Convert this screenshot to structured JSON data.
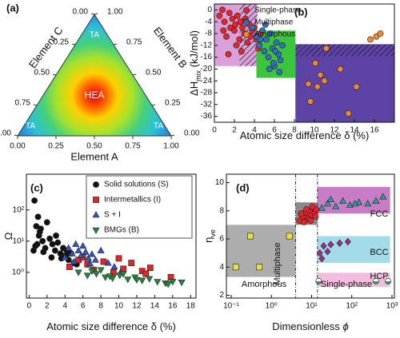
{
  "chart_data": [
    {
      "type": "ternary",
      "panel_label": "(a)",
      "axes": [
        {
          "label": "Element A",
          "ticks": [
            {
              "value": 0,
              "label": "0.00"
            },
            {
              "value": 0.25,
              "label": "0.25"
            },
            {
              "value": 0.5,
              "label": "0.50"
            },
            {
              "value": 0.75,
              "label": "0.75"
            },
            {
              "value": 1,
              "label": "1.00"
            }
          ]
        },
        {
          "label": "Element B",
          "ticks": [
            {
              "value": 0,
              "label": "0.00"
            },
            {
              "value": 0.25,
              "label": "0.25"
            },
            {
              "value": 0.5,
              "label": "0.50"
            },
            {
              "value": 0.75,
              "label": "0.75"
            },
            {
              "value": 1,
              "label": "1.00"
            }
          ]
        },
        {
          "label": "Element C",
          "ticks": [
            {
              "value": 0,
              "label": "0.00"
            },
            {
              "value": 0.25,
              "label": "0.25"
            },
            {
              "value": 0.5,
              "label": "0.50"
            },
            {
              "value": 0.75,
              "label": "0.75"
            },
            {
              "value": 1,
              "label": "1.00"
            }
          ]
        }
      ],
      "annotations": [
        "HEA",
        "TA",
        "TA",
        "TA"
      ]
    },
    {
      "type": "scatter",
      "panel_label": "(b)",
      "x_label": "Atomic size difference δ (%)",
      "y_label": "ΔH",
      "y_label_sub": "mix",
      "y_label_unit": " (kJ/mol)",
      "xlim": [
        0,
        18
      ],
      "xticks": [
        0,
        2,
        4,
        6,
        8,
        10,
        12,
        14,
        16
      ],
      "ylim": [
        -38,
        2
      ],
      "yticks": [
        0,
        -4,
        -8,
        -12,
        -16,
        -20,
        -24,
        -28,
        -32,
        -36
      ],
      "legend": "top-left",
      "regions": [
        {
          "xrange": [
            0,
            4.3
          ],
          "yrange": [
            -19,
            2
          ],
          "color": "#d9a0d9"
        },
        {
          "xrange": [
            2.5,
            4.3
          ],
          "yrange": [
            -19,
            2
          ],
          "pattern": "hatch"
        },
        {
          "xrange": [
            4.2,
            8.1
          ],
          "yrange": [
            -23,
            -7
          ],
          "color": "#3cc43c"
        },
        {
          "xrange": [
            8.1,
            18
          ],
          "yrange": [
            -38,
            -11.6
          ],
          "color": "#5e43a6"
        },
        {
          "xrange": [
            8.1,
            18
          ],
          "yrange": [
            -15.7,
            -11.6
          ],
          "pattern": "hatch"
        }
      ],
      "series": [
        {
          "name": "Single-phase",
          "color": "#e8242a",
          "marker": "circle",
          "x": [
            0.5,
            0.8,
            1.0,
            1.2,
            1.5,
            1.6,
            1.8,
            2.0,
            2.1,
            2.3,
            2.5,
            2.6,
            2.8,
            3.0,
            3.1,
            3.3,
            3.5,
            3.6,
            3.8,
            4.0,
            4.2,
            4.4,
            4.6,
            1.4,
            2.2,
            3.2,
            0.9,
            2.7
          ],
          "y": [
            -2,
            0,
            -4,
            -9,
            -1,
            -6,
            -3,
            -7,
            -5,
            -2,
            -10,
            -4,
            -6,
            -8,
            -3,
            -11,
            -5,
            -9,
            -7,
            -6,
            -10,
            -13,
            -8,
            -15,
            -12,
            -4,
            -7,
            -14
          ]
        },
        {
          "name": "Multiphase",
          "color": "#2f6fc4",
          "marker": "circle",
          "x": [
            3.8,
            4.2,
            4.5,
            4.8,
            5.0,
            5.2,
            5.4,
            5.6,
            5.8,
            6.0,
            6.2,
            6.4,
            6.6,
            6.8,
            5.1,
            5.5,
            4.6,
            6.1,
            5.9,
            6.5
          ],
          "y": [
            -6,
            -9,
            -12,
            -7,
            -14,
            -10,
            -16,
            -8,
            -13,
            -19,
            -11,
            -15,
            -17,
            -12,
            -5,
            -20,
            -10,
            -14,
            -18,
            -21
          ]
        },
        {
          "name": "Amorphous",
          "color": "#f08a2c",
          "marker": "circle",
          "x": [
            9.6,
            10.1,
            10.3,
            10.6,
            11.0,
            11.2,
            12.6,
            13.4,
            14.2,
            15.6,
            16.2,
            16.6,
            9.4
          ],
          "y": [
            -31,
            -18,
            -26,
            -22,
            -24,
            -13,
            -20,
            -35,
            -26,
            -10,
            -9,
            -8,
            -25
          ]
        }
      ]
    },
    {
      "type": "scatter",
      "panel_label": "(c)",
      "x_label": "Atomic size difference δ (%)",
      "y_label": "Ω",
      "xlim": [
        -0.3,
        18.6
      ],
      "xticks": [
        0,
        2,
        4,
        6,
        8,
        10,
        12,
        14,
        16,
        18
      ],
      "ylim": [
        0.15,
        1400
      ],
      "ylog": true,
      "yticks": [
        {
          "value": 1,
          "label": "10⁰"
        },
        {
          "value": 10,
          "label": "10¹"
        },
        {
          "value": 100,
          "label": "10²"
        }
      ],
      "legend": "top-right",
      "series": [
        {
          "name": "Solid solutions (S)",
          "color": "#111111",
          "marker": "circle",
          "x": [
            0.5,
            0.6,
            0.8,
            0.9,
            1.0,
            1.1,
            1.3,
            1.5,
            1.8,
            2.0,
            2.3,
            2.6,
            2.9,
            3.2,
            3.5,
            3.8,
            4.1,
            4.4,
            4.7,
            5.0,
            5.3,
            0.7,
            1.2,
            2.5,
            3.0,
            3.6,
            4.2,
            1.6
          ],
          "y": [
            5,
            200,
            30,
            8,
            60,
            15,
            25,
            10,
            6,
            40,
            12,
            8,
            5,
            9,
            4,
            6,
            3.5,
            2.5,
            4,
            2,
            1.8,
            7,
            20,
            3,
            15,
            2.8,
            5,
            4.5
          ]
        },
        {
          "name": "Intermetallics (I)",
          "color": "#e0262b",
          "marker": "square",
          "x": [
            4.5,
            5.5,
            6.5,
            7.2,
            8.3,
            9.4,
            10.5,
            11.4,
            12.6,
            13.5,
            15.8,
            6.0,
            10.0,
            13.0
          ],
          "y": [
            1.5,
            2.5,
            1.8,
            1.2,
            2.2,
            1.0,
            1.3,
            2.0,
            1.1,
            1.4,
            0.7,
            3,
            2.8,
            0.9
          ]
        },
        {
          "name": "S + I",
          "color": "#2d56c8",
          "marker": "triangle",
          "x": [
            4.0,
            4.4,
            4.8,
            5.2,
            5.5,
            5.8,
            6.0,
            6.3,
            6.6,
            7.0,
            7.4,
            8.0,
            8.8,
            9.5,
            10.2,
            5.0,
            6.8
          ],
          "y": [
            3,
            6,
            4,
            8,
            5,
            3.5,
            7,
            4.5,
            2.8,
            3.8,
            2.5,
            5,
            2.0,
            1.5,
            1.0,
            2.2,
            1.9
          ]
        },
        {
          "name": "BMGs (B)",
          "color": "#1e8a3a",
          "marker": "triangle-down",
          "x": [
            5.5,
            6.5,
            7.5,
            8.5,
            9.3,
            10.1,
            11.0,
            11.8,
            12.6,
            13.4,
            14.3,
            15.2,
            16.0,
            17.0,
            7.0,
            9.0,
            12.0,
            15.5,
            8.0,
            10.5
          ],
          "y": [
            1.0,
            0.8,
            0.9,
            0.7,
            0.65,
            0.8,
            0.6,
            0.7,
            0.55,
            0.62,
            0.5,
            0.45,
            0.5,
            0.48,
            1.1,
            0.75,
            0.58,
            0.42,
            1.2,
            0.9
          ]
        }
      ]
    },
    {
      "type": "scatter",
      "panel_label": "(d)",
      "x_label": "Dimensionless",
      "x_label_symbol": "ϕ",
      "y_label": "η",
      "y_label_sub": "ve",
      "xlim": [
        0.076,
        1150
      ],
      "xlog": true,
      "xticks": [
        {
          "value": 0.1,
          "label": "10⁻¹"
        },
        {
          "value": 1,
          "label": "10⁰"
        },
        {
          "value": 10,
          "label": "10¹"
        },
        {
          "value": 100,
          "label": "10²"
        },
        {
          "value": 1000,
          "label": "10³"
        }
      ],
      "ylim": [
        1.8,
        10.6
      ],
      "yticks": [
        2,
        4,
        6,
        8,
        10
      ],
      "regions": [
        {
          "xrange": [
            0.076,
            4
          ],
          "yrange": [
            3.3,
            7
          ],
          "color": "#adadad"
        },
        {
          "xrange": [
            4,
            14
          ],
          "yrange": [
            7,
            8.6
          ],
          "color": "#8a8a8a"
        },
        {
          "xrange": [
            14,
            900
          ],
          "yrange": [
            7.8,
            9.7
          ],
          "color": "#c97cc6"
        },
        {
          "xrange": [
            14,
            900
          ],
          "yrange": [
            4.3,
            6.2
          ],
          "color": "#a3dbe8"
        },
        {
          "xrange": [
            14,
            900
          ],
          "yrange": [
            2.6,
            3.6
          ],
          "color": "#f4bde0"
        }
      ],
      "dividers": [
        4,
        14
      ],
      "annotations": [
        "Amorphous",
        "Multiphase",
        "Single-phase",
        "FCC",
        "BCC",
        "HCP"
      ],
      "series": [
        {
          "color": "#e8e23a",
          "marker": "square",
          "x": [
            0.13,
            0.3,
            0.5,
            2.8
          ],
          "y": [
            4.0,
            6.2,
            4.0,
            6.2
          ]
        },
        {
          "color": "#e8242a",
          "marker": "circle",
          "x": [
            5,
            6,
            7,
            8,
            9,
            10,
            11,
            12,
            13,
            6.5,
            8.5,
            10.5,
            12.5,
            5.5,
            7.5,
            9.5
          ],
          "y": [
            7.3,
            7.6,
            7.9,
            7.5,
            8.0,
            7.7,
            8.2,
            7.8,
            8.1,
            7.2,
            7.4,
            8.3,
            7.6,
            7.8,
            8.1,
            7.3
          ]
        },
        {
          "color": "#2a9d9a",
          "marker": "triangle",
          "x": [
            18,
            25,
            40,
            60,
            90,
            150,
            250,
            400,
            600,
            30,
            120
          ],
          "y": [
            8.2,
            8.5,
            8.3,
            8.7,
            8.4,
            8.6,
            8.5,
            8.7,
            9.0,
            8.8,
            8.5
          ]
        },
        {
          "color": "#9b2f8e",
          "marker": "diamond",
          "x": [
            16,
            20,
            30,
            50,
            80,
            18,
            25
          ],
          "y": [
            5.0,
            5.5,
            5.6,
            5.7,
            5.8,
            4.6,
            5.1
          ]
        },
        {
          "color": "#3a9a6a",
          "marker": "half-circle",
          "x": [
            15,
            400,
            800
          ],
          "y": [
            3.0,
            3.0,
            3.0
          ]
        }
      ]
    }
  ]
}
